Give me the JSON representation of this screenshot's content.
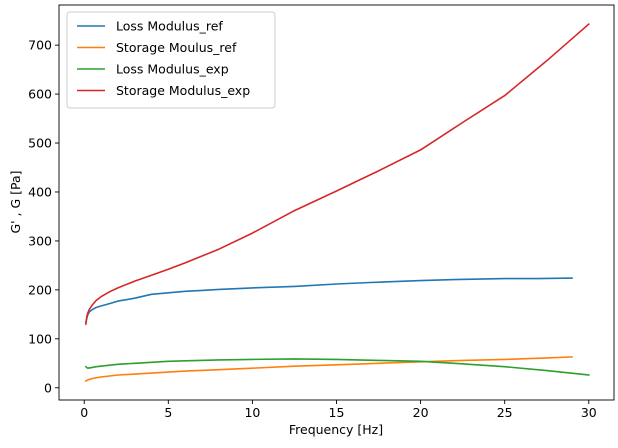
{
  "chart_data": {
    "type": "line",
    "title": "",
    "xlabel": "Frequency [Hz]",
    "ylabel": "G' , G [Pa]",
    "xlim": [
      -1.5,
      31.5
    ],
    "ylim": [
      -25,
      782
    ],
    "xticks": [
      0,
      5,
      10,
      15,
      20,
      25,
      30
    ],
    "yticks": [
      0,
      100,
      200,
      300,
      400,
      500,
      600,
      700
    ],
    "grid": false,
    "legend_position": "upper-left",
    "series": [
      {
        "name": "Loss Modulus_ref",
        "color": "#1f77b4",
        "x": [
          0.1,
          0.2,
          0.3,
          0.5,
          0.7,
          1,
          1.5,
          2,
          2.5,
          3,
          4,
          5,
          6,
          7,
          8,
          10,
          12.5,
          15,
          17,
          20,
          22,
          25,
          27,
          29
        ],
        "y": [
          135,
          148,
          155,
          160,
          164,
          167,
          172,
          177,
          180,
          183,
          191,
          194,
          197,
          199,
          201,
          204,
          207,
          212,
          215,
          219,
          221,
          223,
          223,
          224
        ]
      },
      {
        "name": "Storage Moulus_ref",
        "color": "#ff7f0e",
        "x": [
          0.1,
          0.3,
          0.5,
          0.8,
          1,
          1.5,
          2,
          3,
          4,
          5,
          6,
          8,
          10,
          12.5,
          15,
          17.5,
          20,
          22.5,
          25,
          27.5,
          29
        ],
        "y": [
          14,
          17,
          19,
          21,
          22,
          24,
          26,
          28,
          30,
          32,
          34,
          37,
          40,
          44,
          47,
          50,
          53,
          56,
          58,
          61,
          63
        ]
      },
      {
        "name": "Loss Modulus_exp",
        "color": "#2ca02c",
        "x": [
          0.1,
          0.2,
          0.4,
          0.7,
          1,
          1.5,
          2,
          3,
          4,
          5,
          6,
          8,
          10,
          12.5,
          15,
          17.5,
          20,
          22,
          25,
          27.5,
          30
        ],
        "y": [
          43,
          40,
          41,
          43,
          44,
          46,
          48,
          50,
          52,
          54,
          55,
          57,
          58,
          59,
          58,
          56,
          54,
          50,
          43,
          35,
          26
        ]
      },
      {
        "name": "Storage Modulus_exp",
        "color": "#d62728",
        "x": [
          0.1,
          0.15,
          0.2,
          0.3,
          0.5,
          0.7,
          1,
          1.5,
          2,
          3,
          4,
          5,
          6,
          8,
          10,
          12.5,
          15,
          17.5,
          20,
          22.5,
          25,
          27.5,
          30
        ],
        "y": [
          130,
          145,
          152,
          160,
          170,
          178,
          186,
          196,
          204,
          218,
          230,
          242,
          255,
          283,
          316,
          362,
          402,
          443,
          486,
          542,
          597,
          668,
          743
        ]
      }
    ]
  }
}
